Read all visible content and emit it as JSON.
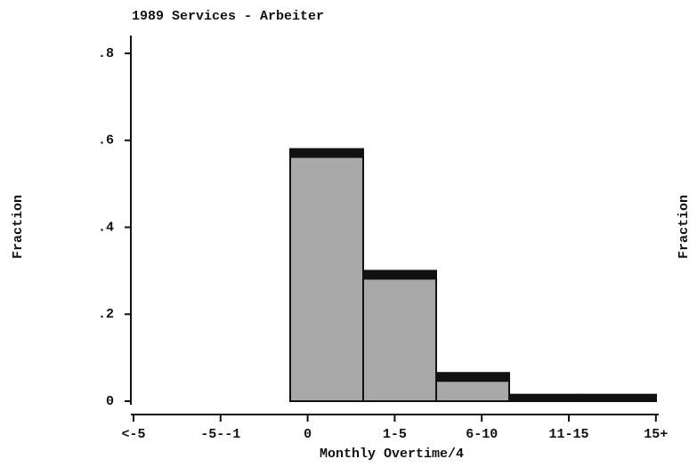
{
  "chart_data": {
    "type": "bar",
    "title": "1989 Services - Arbeiter",
    "xlabel": "Monthly Overtime/4",
    "ylabel": "Fraction",
    "ylabel_right": "Fraction",
    "categories": [
      "<-5",
      "-5--1",
      "0",
      "1-5",
      "6-10",
      "11-15",
      "15+"
    ],
    "values": [
      0,
      0,
      0.58,
      0.3,
      0.065,
      0.015,
      0.015
    ],
    "color": "#a8a8a8",
    "ylim": [
      0,
      0.8
    ],
    "yticks": [
      0,
      {
        "value": 0.2,
        "label": ".2"
      },
      {
        "value": 0.4,
        "label": ".4"
      },
      {
        "value": 0.6,
        "label": ".6"
      },
      {
        "value": 0.8,
        "label": ".8"
      }
    ]
  }
}
